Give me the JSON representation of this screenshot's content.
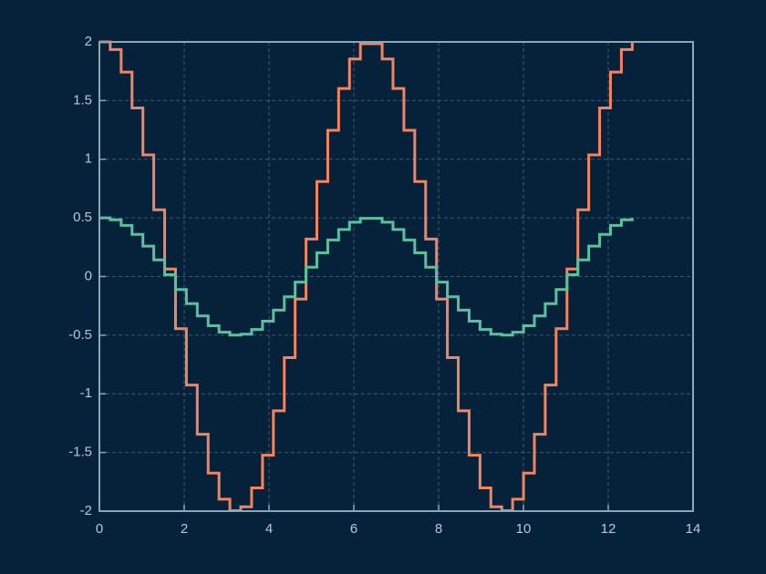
{
  "chart_data": {
    "type": "stairs",
    "x": [
      0,
      0.256,
      0.513,
      0.769,
      1.026,
      1.282,
      1.539,
      1.795,
      2.052,
      2.308,
      2.565,
      2.821,
      3.077,
      3.334,
      3.59,
      3.847,
      4.103,
      4.36,
      4.616,
      4.873,
      5.129,
      5.386,
      5.642,
      5.898,
      6.155,
      6.411,
      6.668,
      6.924,
      7.181,
      7.437,
      7.694,
      7.95,
      8.206,
      8.463,
      8.719,
      8.976,
      9.232,
      9.489,
      9.745,
      10.002,
      10.258,
      10.514,
      10.771,
      11.027,
      11.284,
      11.54,
      11.797,
      12.053,
      12.31,
      12.566
    ],
    "series": [
      {
        "color": "#f4845f",
        "values": [
          2,
          1.935,
          1.743,
          1.437,
          1.037,
          0.569,
          0.064,
          -0.445,
          -0.925,
          -1.345,
          -1.676,
          -1.898,
          -1.996,
          -1.963,
          -1.802,
          -1.523,
          -1.145,
          -0.691,
          -0.192,
          0.319,
          0.81,
          1.247,
          1.603,
          1.854,
          1.984,
          1.984,
          1.854,
          1.603,
          1.247,
          0.81,
          0.319,
          -0.192,
          -0.691,
          -1.145,
          -1.523,
          -1.802,
          -1.963,
          -1.996,
          -1.898,
          -1.676,
          -1.345,
          -0.925,
          -0.445,
          0.064,
          0.569,
          1.037,
          1.437,
          1.743,
          1.935,
          2
        ]
      },
      {
        "color": "#5cc09e",
        "values": [
          0.5,
          0.484,
          0.436,
          0.359,
          0.259,
          0.142,
          0.016,
          -0.111,
          -0.231,
          -0.336,
          -0.419,
          -0.475,
          -0.499,
          -0.491,
          -0.451,
          -0.381,
          -0.286,
          -0.173,
          -0.048,
          0.08,
          0.202,
          0.312,
          0.401,
          0.463,
          0.496,
          0.496,
          0.463,
          0.401,
          0.312,
          0.202,
          0.08,
          -0.048,
          -0.173,
          -0.286,
          -0.381,
          -0.451,
          -0.491,
          -0.499,
          -0.475,
          -0.419,
          -0.336,
          -0.231,
          -0.111,
          0.016,
          0.142,
          0.259,
          0.359,
          0.436,
          0.484,
          0.5
        ]
      }
    ],
    "xlim": [
      0,
      14
    ],
    "xticks": [
      0,
      2,
      4,
      6,
      8,
      10,
      12,
      14
    ],
    "ylim": [
      -2,
      2
    ],
    "yticks": [
      -2,
      -1.5,
      -1,
      -0.5,
      0,
      0.5,
      1,
      1.5,
      2
    ],
    "grid": true
  }
}
